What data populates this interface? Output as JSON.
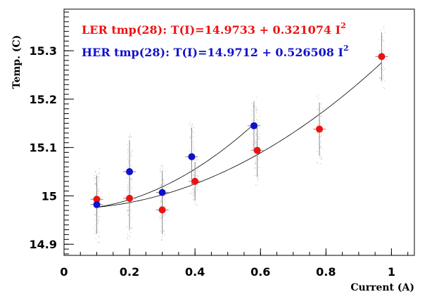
{
  "chart_data": {
    "type": "scatter",
    "title": "",
    "xlabel": "Current (A)",
    "ylabel": "Temp. (C)",
    "xlim": [
      0,
      1.07
    ],
    "ylim": [
      14.877,
      15.386
    ],
    "x_ticks": [
      "0",
      "0.2",
      "0.4",
      "0.6",
      "0.8",
      "1"
    ],
    "y_ticks": [
      "14.9",
      "15",
      "15.1",
      "15.2",
      "15.3"
    ],
    "grid": false,
    "annotations": [
      {
        "main": "LER tmp(28): T(I)=14.9733 + 0.321074 I",
        "sup": "2",
        "color": "#ee1111"
      },
      {
        "main": "HER tmp(28): T(I)=14.9712 + 0.526508 I",
        "sup": "2",
        "color": "#1111cc"
      }
    ],
    "series": [
      {
        "color": "#ee1111",
        "x": [
          0.1,
          0.2,
          0.3,
          0.4,
          0.59,
          0.78,
          0.97
        ],
        "y": [
          14.993,
          14.995,
          14.971,
          15.03,
          15.094,
          15.138,
          15.288
        ],
        "yerr": [
          0.045,
          0.065,
          0.05,
          0.04,
          0.055,
          0.055,
          0.05
        ],
        "fit": [
          14.9733,
          0.321074
        ]
      },
      {
        "color": "#1111cc",
        "x": [
          0.1,
          0.2,
          0.3,
          0.39,
          0.58
        ],
        "y": [
          14.982,
          15.05,
          15.007,
          15.081,
          15.145
        ],
        "yerr": [
          0.06,
          0.065,
          0.045,
          0.06,
          0.05
        ],
        "fit": [
          14.9712,
          0.526508
        ]
      }
    ]
  }
}
